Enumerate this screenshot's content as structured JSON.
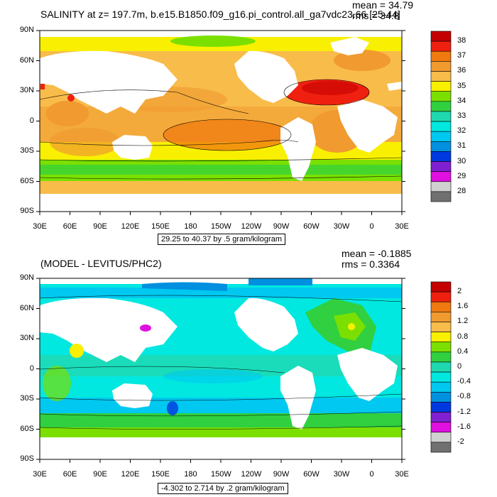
{
  "panels": [
    {
      "title": "SALINITY at z= 197.7m, b.e15.B1850.f09_g16.pi_control.all_ga7vdc23.66 [25-44]",
      "mean": "mean = 34.79",
      "rms": "rms = 34.8",
      "range": "29.25 to 40.37 by .5 gram/kilogram",
      "colorbar_labels": [
        "38",
        "37",
        "36",
        "35",
        "34",
        "33",
        "32",
        "31",
        "30",
        "29",
        "28"
      ],
      "colorbar_colors": [
        "#c40000",
        "#f02010",
        "#f07a10",
        "#f09a30",
        "#f8bc4a",
        "#f8f000",
        "#7be000",
        "#30d040",
        "#20d8b0",
        "#00e8e0",
        "#00c8f0",
        "#0090e0",
        "#0038e0",
        "#8020d0",
        "#e010e0",
        "#d0d0d0",
        "#707070"
      ]
    },
    {
      "title": "(MODEL - LEVITUS/PHC2)",
      "mean": "mean = -0.1885",
      "rms": "rms = 0.3364",
      "range": "-4.302 to 2.714 by .2 gram/kilogram",
      "colorbar_labels": [
        "2",
        "1.6",
        "1.2",
        "0.8",
        "0.4",
        "0",
        "-0.4",
        "-0.8",
        "-1.2",
        "-1.6",
        "-2"
      ],
      "colorbar_colors": [
        "#c40000",
        "#f02010",
        "#f07a10",
        "#f09a30",
        "#f8bc4a",
        "#f8f000",
        "#7be000",
        "#30d040",
        "#20d8b0",
        "#00e8e0",
        "#00c8f0",
        "#0090e0",
        "#0038e0",
        "#8020d0",
        "#e010e0",
        "#d0d0d0",
        "#707070"
      ]
    }
  ],
  "axes": {
    "lat_labels": [
      "90N",
      "60N",
      "30N",
      "0",
      "30S",
      "60S",
      "90S"
    ],
    "lon_labels": [
      "30E",
      "60E",
      "90E",
      "120E",
      "150E",
      "180",
      "150W",
      "120W",
      "90W",
      "60W",
      "30W",
      "0",
      "30E"
    ]
  }
}
